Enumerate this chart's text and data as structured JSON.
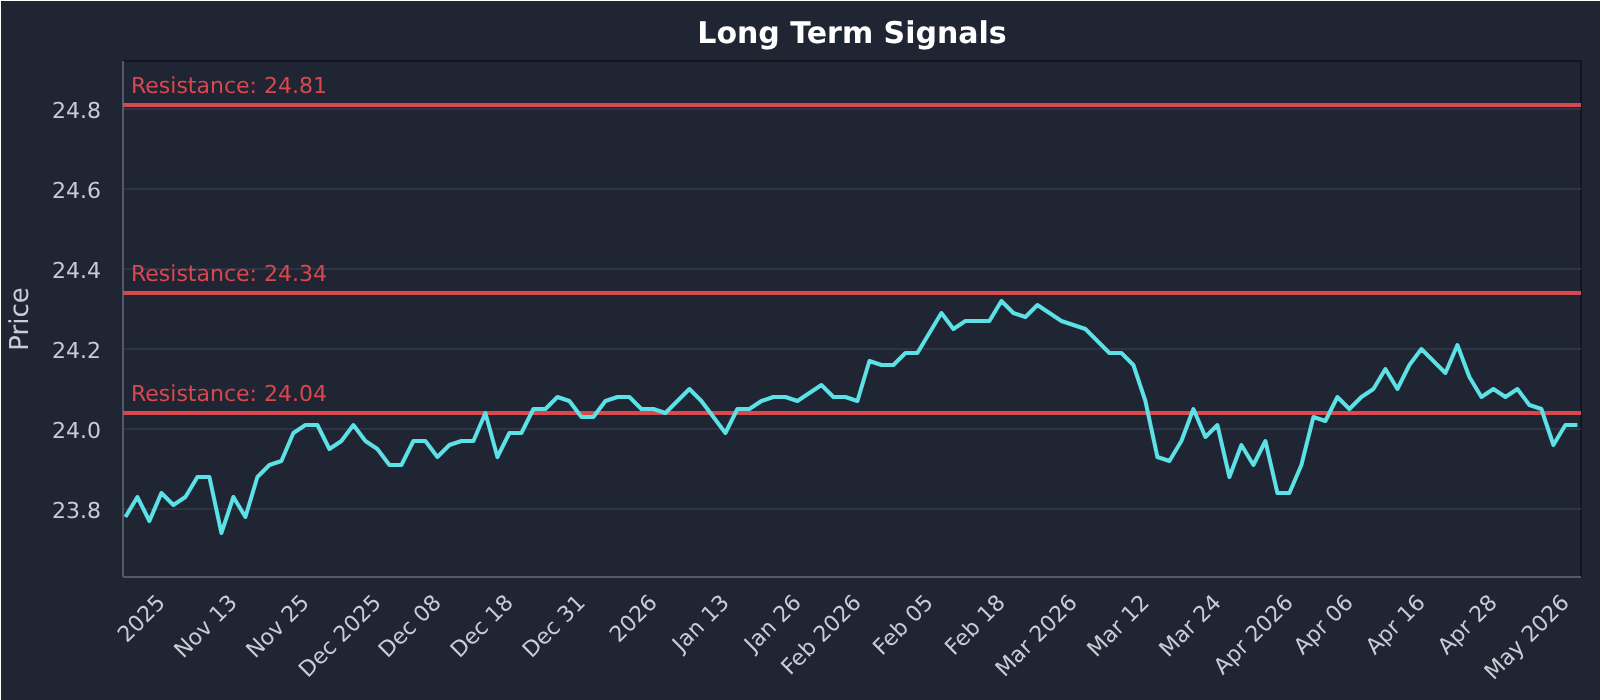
{
  "chart_data": {
    "type": "line",
    "title": "Long Term Signals",
    "ylabel": "Price",
    "categories": [
      null,
      null,
      null,
      "2025",
      null,
      null,
      null,
      null,
      null,
      "Nov 13",
      null,
      null,
      null,
      null,
      null,
      "Nov 25",
      null,
      null,
      null,
      null,
      null,
      "Dec 2025",
      null,
      null,
      null,
      null,
      "Dec 08",
      null,
      null,
      null,
      null,
      null,
      "Dec 18",
      null,
      null,
      null,
      null,
      null,
      "Dec 31",
      null,
      null,
      null,
      null,
      null,
      "2026",
      null,
      null,
      null,
      null,
      null,
      "Jan 13",
      null,
      null,
      null,
      null,
      null,
      "Jan 26",
      null,
      null,
      null,
      null,
      "Feb 2026",
      null,
      null,
      null,
      null,
      null,
      "Feb 05",
      null,
      null,
      null,
      null,
      null,
      "Feb 18",
      null,
      null,
      null,
      null,
      null,
      "Mar 2026",
      null,
      null,
      null,
      null,
      null,
      "Mar 12",
      null,
      null,
      null,
      null,
      null,
      "Mar 24",
      null,
      null,
      null,
      null,
      null,
      "Apr 2026",
      null,
      null,
      null,
      null,
      "Apr 06",
      null,
      null,
      null,
      null,
      null,
      "Apr 16",
      null,
      null,
      null,
      null,
      null,
      "Apr 28",
      null,
      null,
      null,
      null,
      null,
      "May 2026",
      null
    ],
    "series": [
      {
        "color": "#5ce1e6",
        "values": [
          23.78,
          23.83,
          23.77,
          23.84,
          23.81,
          23.83,
          23.88,
          23.88,
          23.74,
          23.83,
          23.78,
          23.88,
          23.91,
          23.92,
          23.99,
          24.01,
          24.01,
          23.95,
          23.97,
          24.01,
          23.97,
          23.95,
          23.91,
          23.91,
          23.97,
          23.97,
          23.93,
          23.96,
          23.97,
          23.97,
          24.04,
          23.93,
          23.99,
          23.99,
          24.05,
          24.05,
          24.08,
          24.07,
          24.03,
          24.03,
          24.07,
          24.08,
          24.08,
          24.05,
          24.05,
          24.04,
          24.07,
          24.1,
          24.07,
          24.03,
          23.99,
          24.05,
          24.05,
          24.07,
          24.08,
          24.08,
          24.07,
          24.09,
          24.11,
          24.08,
          24.08,
          24.07,
          24.17,
          24.16,
          24.16,
          24.19,
          24.19,
          24.24,
          24.29,
          24.25,
          24.27,
          24.27,
          24.27,
          24.32,
          24.29,
          24.28,
          24.31,
          24.29,
          24.27,
          24.26,
          24.25,
          24.22,
          24.19,
          24.19,
          24.16,
          24.07,
          23.93,
          23.92,
          23.97,
          24.05,
          23.98,
          24.01,
          23.88,
          23.96,
          23.91,
          23.97,
          23.84,
          23.84,
          23.91,
          24.03,
          24.02,
          24.08,
          24.05,
          24.08,
          24.1,
          24.15,
          24.1,
          24.16,
          24.2,
          24.17,
          24.14,
          24.21,
          24.13,
          24.08,
          24.1,
          24.08,
          24.1,
          24.06,
          24.05,
          23.96,
          24.01,
          24.01
        ]
      }
    ],
    "ylim": [
      23.63,
      24.92
    ],
    "yticks": [
      {
        "value": 23.8,
        "label": "23.8"
      },
      {
        "value": 24.0,
        "label": "24.0"
      },
      {
        "value": 24.2,
        "label": "24.2"
      },
      {
        "value": 24.4,
        "label": "24.4"
      },
      {
        "value": 24.6,
        "label": "24.6"
      },
      {
        "value": 24.8,
        "label": "24.8"
      }
    ],
    "grid": "y",
    "marker": "none",
    "line_style": "solid",
    "ref_lines": [
      {
        "axis": "y",
        "value": 24.81,
        "label": "Resistance: 24.81",
        "color": "#d9484e"
      },
      {
        "axis": "y",
        "value": 24.34,
        "label": "Resistance: 24.34",
        "color": "#d9484e"
      },
      {
        "axis": "y",
        "value": 24.04,
        "label": "Resistance: 24.04",
        "color": "#d9484e"
      }
    ]
  }
}
